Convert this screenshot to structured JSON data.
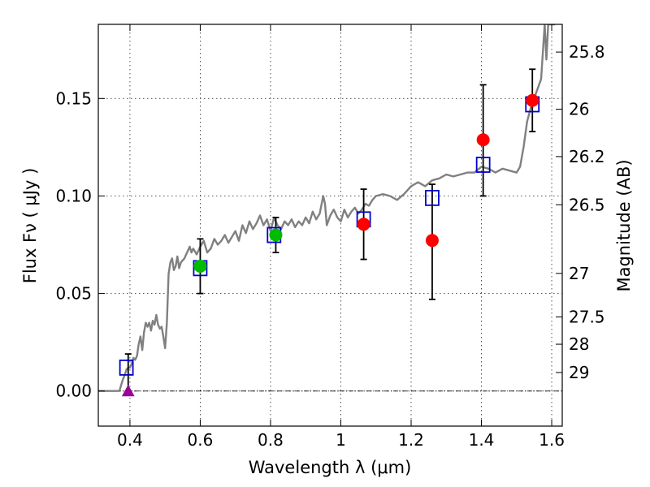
{
  "chart_data": {
    "type": "scatter",
    "xlabel": "Wavelength  λ (μm)",
    "ylabel": "Flux  Fν  ( μJy )",
    "y2label": "Magnitude (AB)",
    "xlim": [
      0.31,
      1.63
    ],
    "ylim": [
      -0.018,
      0.188
    ],
    "grid": true,
    "x_ticks": [
      {
        "value": 0.4,
        "label": "0.4"
      },
      {
        "value": 0.6,
        "label": "0.6"
      },
      {
        "value": 0.8,
        "label": "0.8"
      },
      {
        "value": 1.0,
        "label": "1"
      },
      {
        "value": 1.2,
        "label": "1.2"
      },
      {
        "value": 1.4,
        "label": "1.4"
      },
      {
        "value": 1.6,
        "label": "1.6"
      }
    ],
    "y_ticks": [
      {
        "value": 0.0,
        "label": "0.00"
      },
      {
        "value": 0.05,
        "label": "0.05"
      },
      {
        "value": 0.1,
        "label": "0.10"
      },
      {
        "value": 0.15,
        "label": "0.15"
      }
    ],
    "y2_ticks": [
      {
        "flux": 0.1738,
        "label": "25.8"
      },
      {
        "flux": 0.1445,
        "label": "26"
      },
      {
        "flux": 0.1202,
        "label": "26.2"
      },
      {
        "flux": 0.0955,
        "label": "26.5"
      },
      {
        "flux": 0.0603,
        "label": "27"
      },
      {
        "flux": 0.038,
        "label": "27.5"
      },
      {
        "flux": 0.024,
        "label": "28"
      },
      {
        "flux": 0.0095,
        "label": "29"
      }
    ],
    "zero_line": 0.0,
    "model_sed": {
      "color": "#808080",
      "x": [
        0.31,
        0.37,
        0.375,
        0.38,
        0.385,
        0.39,
        0.395,
        0.4,
        0.405,
        0.41,
        0.415,
        0.42,
        0.425,
        0.43,
        0.435,
        0.44,
        0.445,
        0.45,
        0.455,
        0.46,
        0.465,
        0.47,
        0.475,
        0.48,
        0.485,
        0.49,
        0.495,
        0.5,
        0.505,
        0.51,
        0.515,
        0.52,
        0.525,
        0.53,
        0.535,
        0.54,
        0.545,
        0.55,
        0.555,
        0.56,
        0.565,
        0.57,
        0.575,
        0.58,
        0.59,
        0.6,
        0.61,
        0.62,
        0.63,
        0.64,
        0.65,
        0.66,
        0.67,
        0.68,
        0.69,
        0.7,
        0.71,
        0.72,
        0.73,
        0.74,
        0.75,
        0.76,
        0.77,
        0.78,
        0.79,
        0.8,
        0.81,
        0.82,
        0.83,
        0.84,
        0.85,
        0.86,
        0.87,
        0.88,
        0.89,
        0.9,
        0.91,
        0.92,
        0.93,
        0.94,
        0.95,
        0.955,
        0.96,
        0.97,
        0.98,
        0.99,
        1.0,
        1.01,
        1.02,
        1.03,
        1.04,
        1.05,
        1.06,
        1.07,
        1.08,
        1.09,
        1.1,
        1.12,
        1.14,
        1.16,
        1.18,
        1.2,
        1.22,
        1.24,
        1.26,
        1.28,
        1.3,
        1.32,
        1.34,
        1.36,
        1.38,
        1.4,
        1.42,
        1.44,
        1.46,
        1.48,
        1.5,
        1.51,
        1.52,
        1.53,
        1.54,
        1.55,
        1.56,
        1.57,
        1.58,
        1.585,
        1.59,
        1.6,
        1.61
      ],
      "y": [
        0.0,
        0.0,
        0.003,
        0.006,
        0.008,
        0.011,
        0.012,
        0.012,
        0.014,
        0.017,
        0.016,
        0.018,
        0.024,
        0.028,
        0.021,
        0.03,
        0.035,
        0.033,
        0.035,
        0.031,
        0.036,
        0.034,
        0.039,
        0.034,
        0.032,
        0.033,
        0.028,
        0.022,
        0.035,
        0.06,
        0.066,
        0.068,
        0.062,
        0.064,
        0.069,
        0.063,
        0.066,
        0.067,
        0.068,
        0.07,
        0.072,
        0.074,
        0.071,
        0.073,
        0.07,
        0.074,
        0.077,
        0.071,
        0.073,
        0.078,
        0.075,
        0.077,
        0.08,
        0.076,
        0.079,
        0.082,
        0.077,
        0.085,
        0.081,
        0.087,
        0.083,
        0.086,
        0.09,
        0.085,
        0.088,
        0.082,
        0.089,
        0.085,
        0.083,
        0.087,
        0.085,
        0.088,
        0.084,
        0.087,
        0.085,
        0.089,
        0.086,
        0.092,
        0.088,
        0.091,
        0.1,
        0.096,
        0.085,
        0.09,
        0.093,
        0.089,
        0.087,
        0.093,
        0.089,
        0.092,
        0.094,
        0.091,
        0.093,
        0.096,
        0.095,
        0.098,
        0.1,
        0.101,
        0.1,
        0.098,
        0.101,
        0.105,
        0.107,
        0.105,
        0.108,
        0.109,
        0.111,
        0.11,
        0.111,
        0.112,
        0.112,
        0.115,
        0.114,
        0.112,
        0.114,
        0.113,
        0.112,
        0.115,
        0.125,
        0.138,
        0.145,
        0.15,
        0.155,
        0.16,
        0.188,
        0.17,
        0.188,
        0.188,
        0.188
      ]
    },
    "model_bands": {
      "color": "#0000cc",
      "x": [
        0.39,
        0.6,
        0.81,
        1.065,
        1.26,
        1.405,
        1.545
      ],
      "y": [
        0.012,
        0.063,
        0.08,
        0.088,
        0.099,
        0.116,
        0.147
      ]
    },
    "photometry": [
      {
        "x": 0.6,
        "y": 0.064,
        "err": 0.014,
        "color": "#00bb00"
      },
      {
        "x": 0.815,
        "y": 0.08,
        "err": 0.009,
        "color": "#00bb00"
      },
      {
        "x": 1.065,
        "y": 0.0855,
        "err": 0.018,
        "color": "#ff0000"
      },
      {
        "x": 1.26,
        "y": 0.0772,
        "err": 0.0,
        "color": "#ff0000"
      },
      {
        "x": 1.405,
        "y": 0.1288,
        "err": 0.0,
        "color": "#ff0000"
      },
      {
        "x": 1.545,
        "y": 0.149,
        "err": 0.016,
        "color": "#ff0000"
      }
    ],
    "errorbars_only": [
      {
        "x": 0.395,
        "low": 0.0,
        "high": 0.019
      },
      {
        "x": 1.26,
        "low": 0.047,
        "high": 0.106
      },
      {
        "x": 1.405,
        "low": 0.1,
        "high": 0.157
      }
    ],
    "upper_limit": {
      "x": 0.395,
      "y": 0.0,
      "color": "#990099"
    }
  }
}
